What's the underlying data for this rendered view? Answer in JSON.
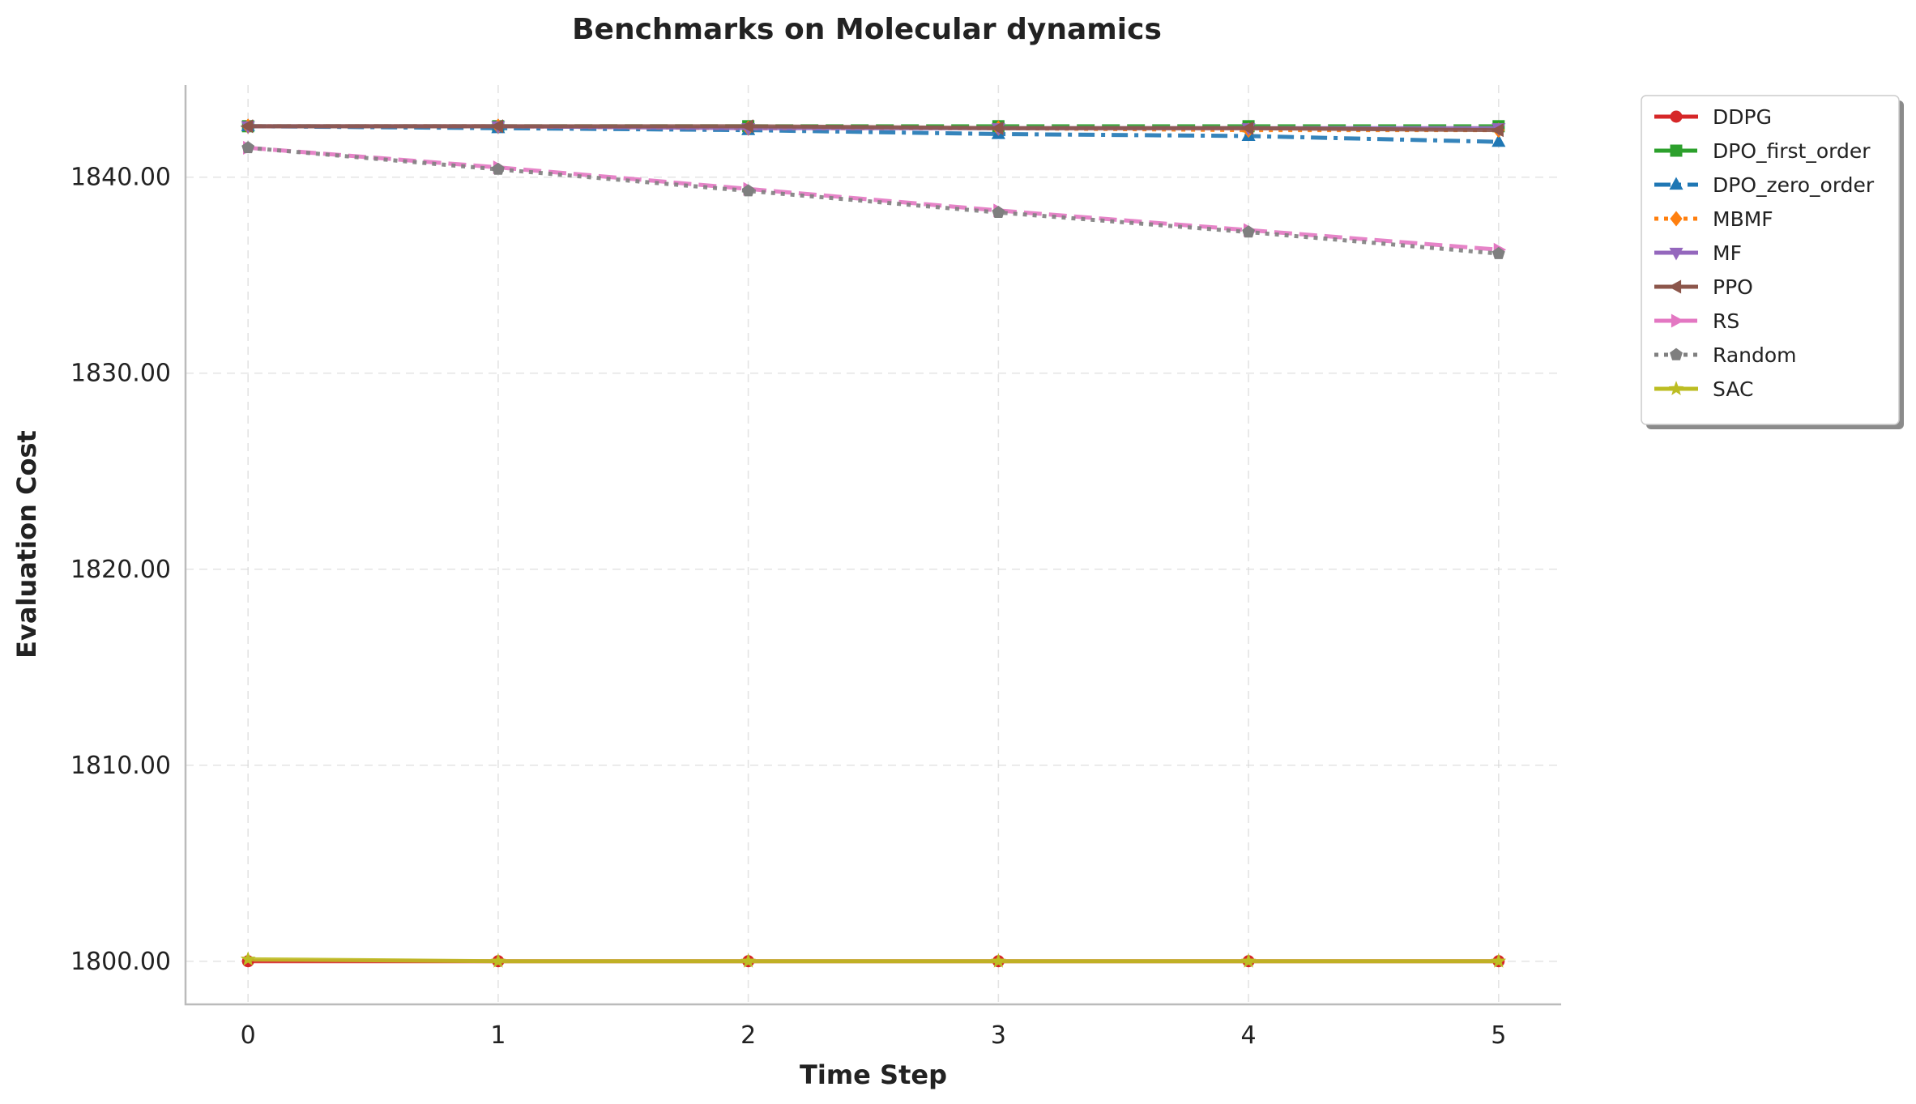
{
  "chart_data": {
    "type": "line",
    "title": "Benchmarks on Molecular dynamics",
    "xlabel": "Time Step",
    "ylabel": "Evaluation Cost",
    "x": [
      0,
      1,
      2,
      3,
      4,
      5
    ],
    "xticks": [
      "0",
      "1",
      "2",
      "3",
      "4",
      "5"
    ],
    "yticks": [
      "1800.00",
      "1810.00",
      "1820.00",
      "1830.00",
      "1840.00"
    ],
    "xlim": [
      -0.25,
      5.25
    ],
    "ylim": [
      1797.8,
      1844.7
    ],
    "grid": true,
    "legend_position": "outside-top-right",
    "series": [
      {
        "name": "DDPG",
        "values": [
          1800.0,
          1800.0,
          1800.0,
          1800.0,
          1800.0,
          1800.0
        ],
        "color": "#d62728",
        "dash": "solid",
        "marker": "circle"
      },
      {
        "name": "DPO_first_order",
        "values": [
          1842.6,
          1842.6,
          1842.6,
          1842.6,
          1842.6,
          1842.6
        ],
        "color": "#2ca02c",
        "dash": "dashed",
        "marker": "square"
      },
      {
        "name": "DPO_zero_order",
        "values": [
          1842.6,
          1842.5,
          1842.4,
          1842.2,
          1842.1,
          1841.8
        ],
        "color": "#1f77b4",
        "dash": "dashdot",
        "marker": "triangle-up"
      },
      {
        "name": "MBMF",
        "values": [
          1842.6,
          1842.6,
          1842.5,
          1842.5,
          1842.4,
          1842.4
        ],
        "color": "#ff7f0e",
        "dash": "dotted",
        "marker": "diamond"
      },
      {
        "name": "MF",
        "values": [
          1842.6,
          1842.6,
          1842.5,
          1842.5,
          1842.5,
          1842.5
        ],
        "color": "#9467bd",
        "dash": "solid",
        "marker": "triangle-down"
      },
      {
        "name": "PPO",
        "values": [
          1842.6,
          1842.6,
          1842.6,
          1842.5,
          1842.5,
          1842.4
        ],
        "color": "#8c564b",
        "dash": "solid",
        "marker": "triangle-left"
      },
      {
        "name": "RS",
        "values": [
          1841.5,
          1840.5,
          1839.4,
          1838.3,
          1837.3,
          1836.3
        ],
        "color": "#e377c2",
        "dash": "dashed",
        "marker": "triangle-right"
      },
      {
        "name": "Random",
        "values": [
          1841.5,
          1840.4,
          1839.3,
          1838.2,
          1837.2,
          1836.1
        ],
        "color": "#7f7f7f",
        "dash": "dotted",
        "marker": "pentagon"
      },
      {
        "name": "SAC",
        "values": [
          1800.1,
          1800.0,
          1800.0,
          1800.0,
          1800.0,
          1800.0
        ],
        "color": "#bcbd22",
        "dash": "solid",
        "marker": "star"
      }
    ]
  }
}
